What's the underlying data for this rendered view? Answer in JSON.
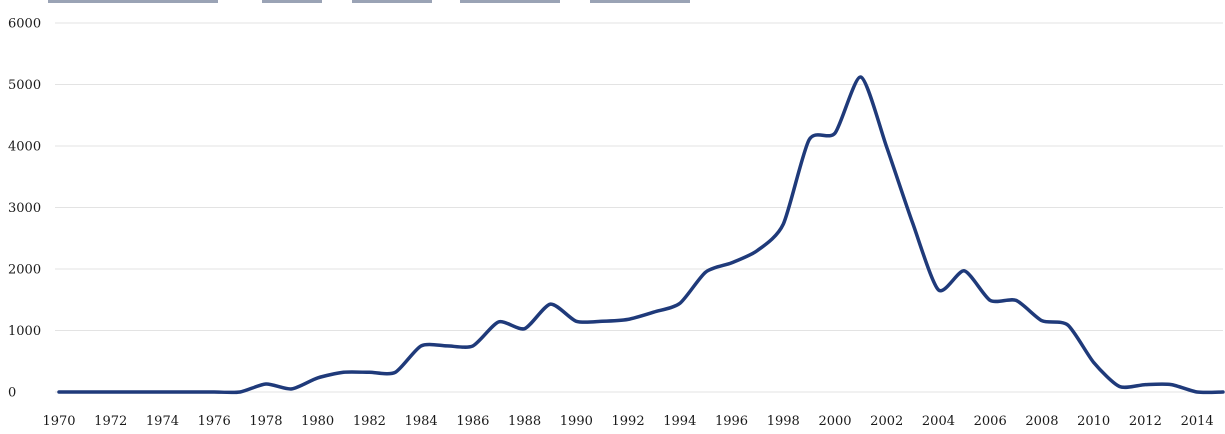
{
  "chart_data": {
    "type": "line",
    "title": "",
    "xlabel": "",
    "ylabel": "",
    "ylim": [
      0,
      6000
    ],
    "yticks": [
      "0",
      "1000",
      "2000",
      "3000",
      "4000",
      "5000",
      "6000"
    ],
    "xlim": [
      1970,
      2015
    ],
    "xticks": [
      "1970",
      "1972",
      "1974",
      "1976",
      "1978",
      "1980",
      "1982",
      "1984",
      "1986",
      "1988",
      "1990",
      "1992",
      "1994",
      "1996",
      "1998",
      "2000",
      "2002",
      "2004",
      "2006",
      "2008",
      "2010",
      "2012",
      "2014"
    ],
    "grid": "horizontal",
    "legend": "none",
    "colors": {
      "series": "#1f3a7a",
      "grid": "#e3e3e3"
    },
    "series": [
      {
        "x": [
          1970,
          1971,
          1972,
          1973,
          1974,
          1975,
          1976,
          1977,
          1978,
          1979,
          1980,
          1981,
          1982,
          1983,
          1984,
          1985,
          1986,
          1987,
          1988,
          1989,
          1990,
          1991,
          1992,
          1993,
          1994,
          1995,
          1996,
          1997,
          1998,
          1999,
          2000,
          2001,
          2002,
          2003,
          2004,
          2005,
          2006,
          2007,
          2008,
          2009,
          2010,
          2011,
          2012,
          2013,
          2014,
          2015
        ],
        "values": [
          0,
          0,
          0,
          0,
          0,
          0,
          0,
          0,
          130,
          50,
          230,
          320,
          320,
          320,
          750,
          750,
          750,
          1140,
          1030,
          1430,
          1150,
          1150,
          1180,
          1300,
          1440,
          1950,
          2100,
          2300,
          2730,
          4100,
          4210,
          5120,
          3980,
          2750,
          1660,
          1970,
          1490,
          1490,
          1160,
          1090,
          480,
          90,
          120,
          120,
          0,
          0
        ]
      }
    ]
  }
}
